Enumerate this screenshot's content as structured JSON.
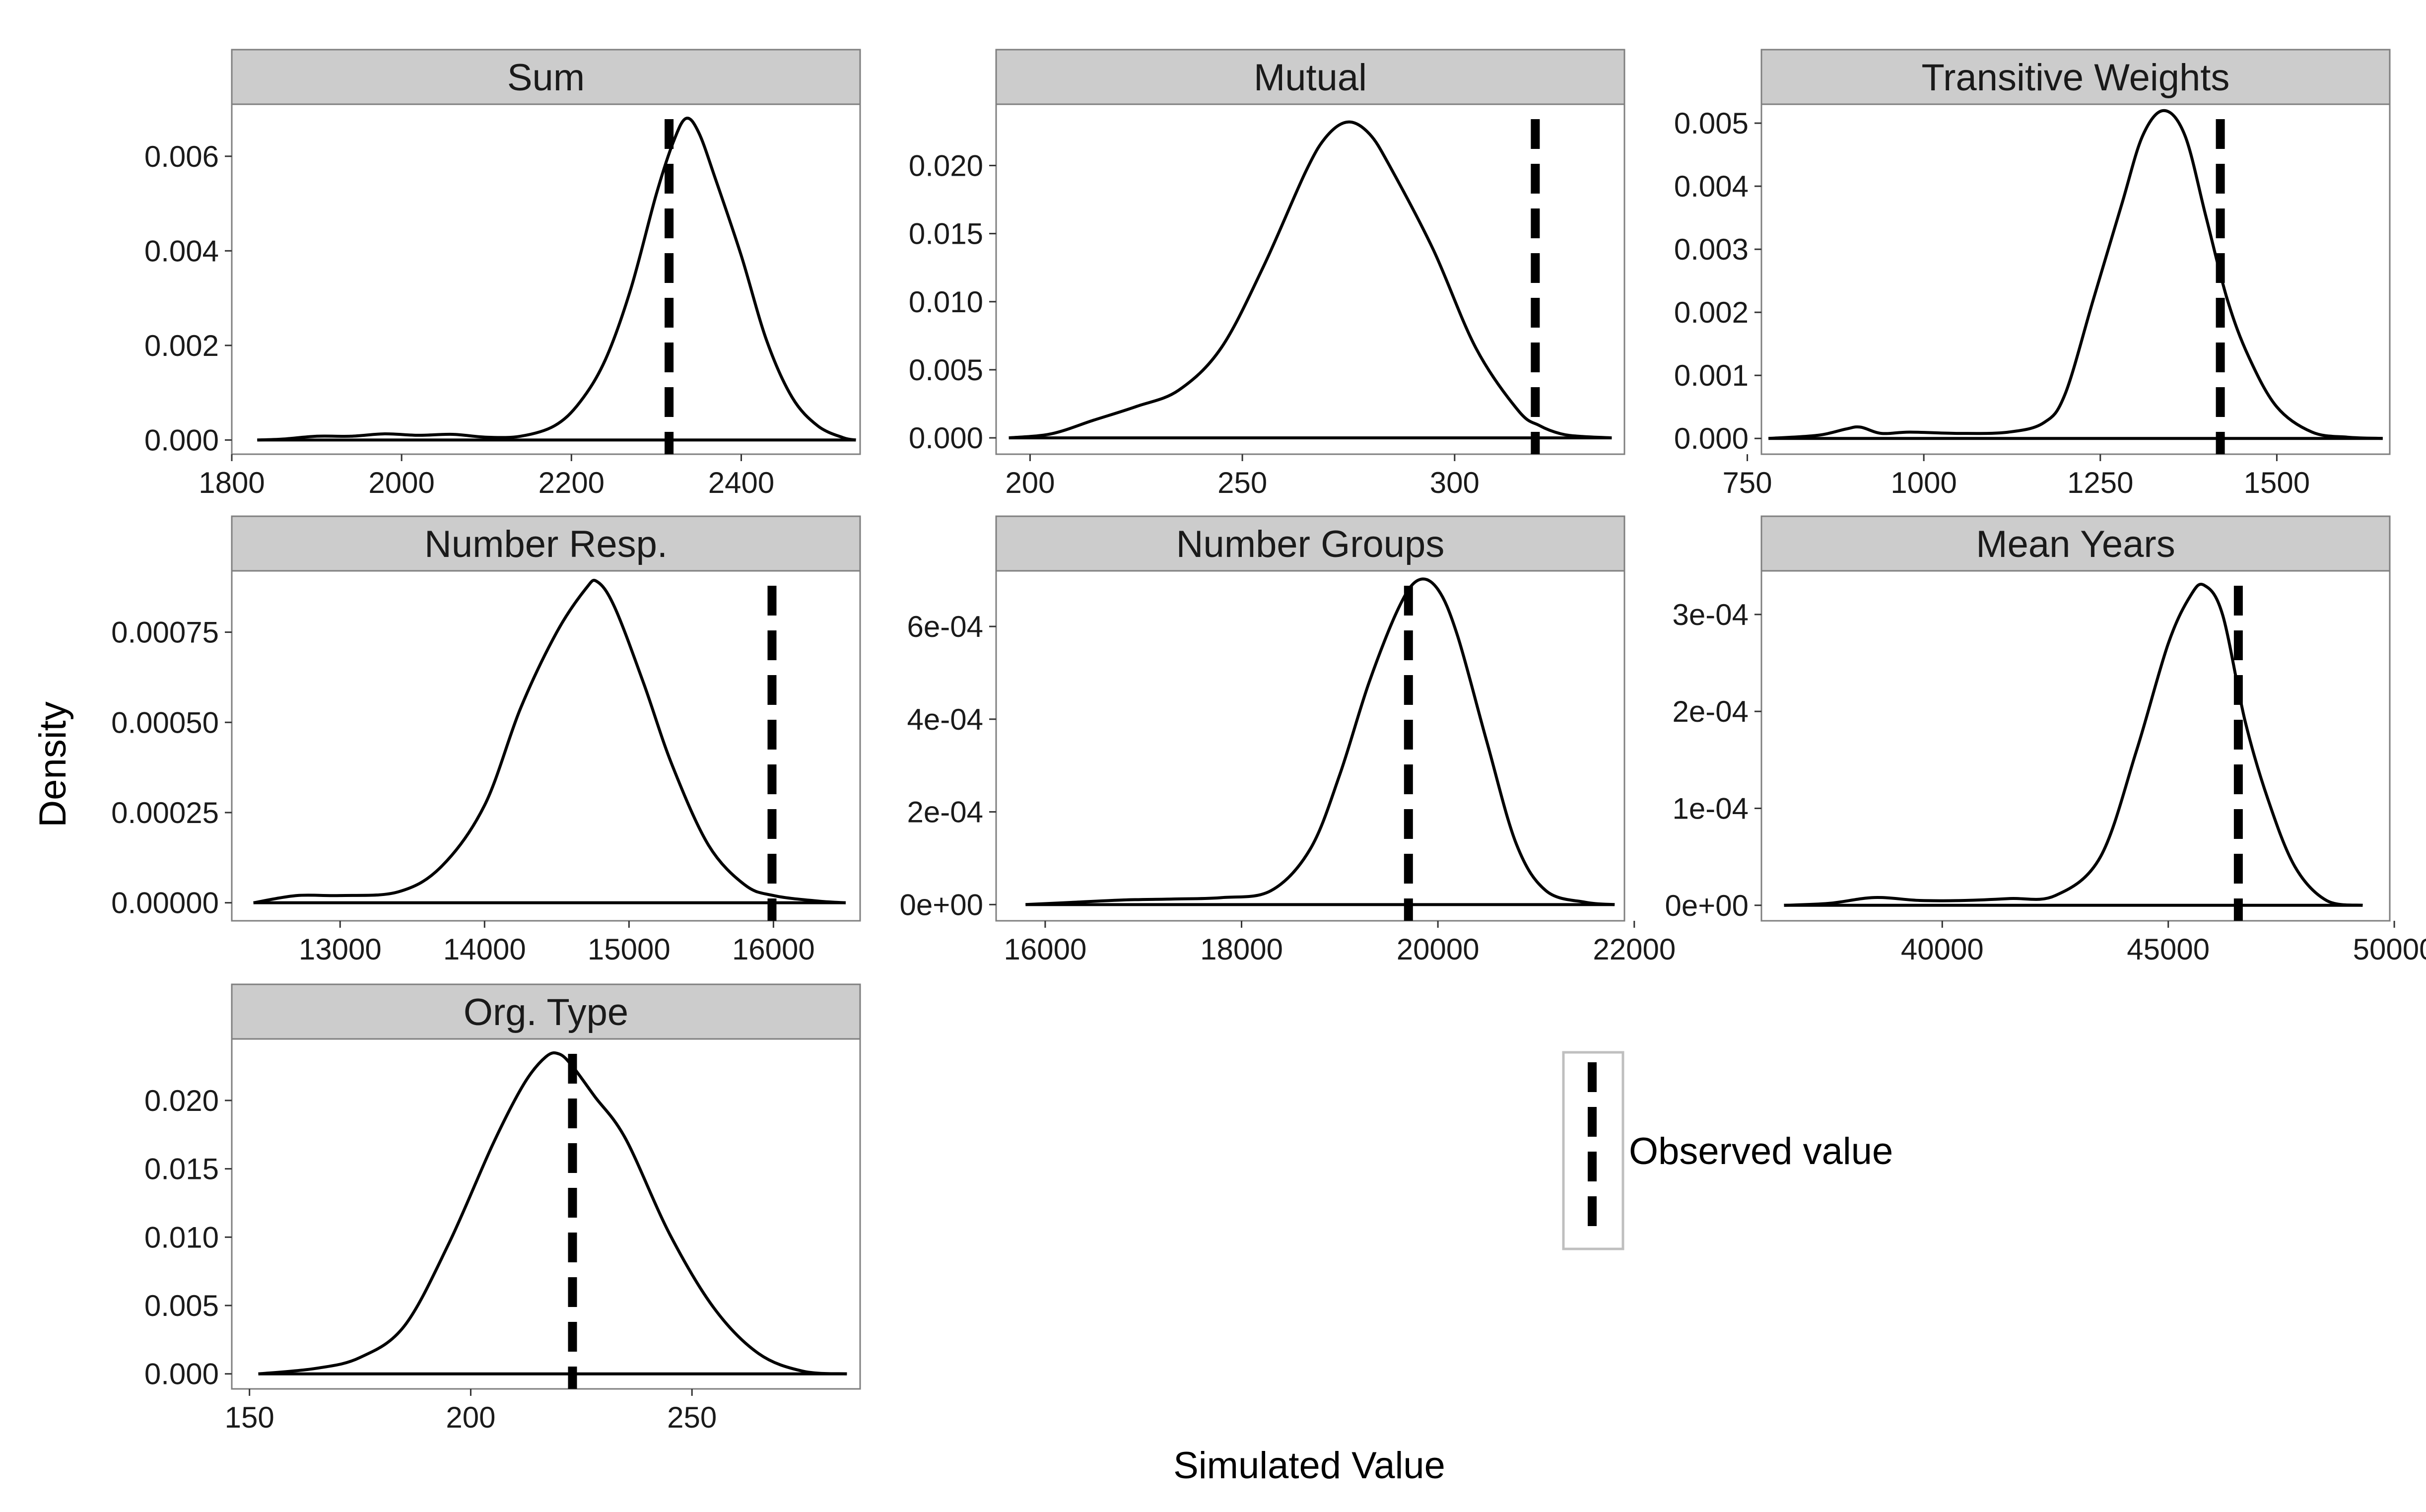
{
  "chart_data": {
    "type": "line",
    "subtype": "faceted density plots with observed-value reference lines",
    "xlabel": "Simulated Value",
    "ylabel": "Density",
    "grid": false,
    "legend": {
      "position": "right",
      "entries": [
        {
          "label": "Observed value",
          "style": "dashed"
        }
      ]
    },
    "facets": [
      {
        "title": "Sum",
        "xlim": [
          1800,
          2540
        ],
        "ylim": [
          -0.0003,
          0.0071
        ],
        "xticks": [
          1800,
          2000,
          2200,
          2400
        ],
        "xtick_labels": [
          "1800",
          "2000",
          "2200",
          "2400"
        ],
        "yticks": [
          0,
          0.002,
          0.004,
          0.006
        ],
        "ytick_labels": [
          "0.000",
          "0.002",
          "0.004",
          "0.006"
        ],
        "observed": 2315,
        "x": [
          1830,
          1860,
          1900,
          1940,
          1980,
          2020,
          2060,
          2100,
          2140,
          2180,
          2210,
          2240,
          2270,
          2300,
          2320,
          2335,
          2350,
          2370,
          2400,
          2430,
          2460,
          2490,
          2520,
          2535
        ],
        "density": [
          0,
          2e-05,
          8e-05,
          8e-05,
          0.00013,
          0.0001,
          0.00012,
          6e-05,
          8e-05,
          0.0003,
          0.0008,
          0.0017,
          0.0032,
          0.0052,
          0.0063,
          0.0068,
          0.0065,
          0.0055,
          0.0039,
          0.0021,
          0.0009,
          0.0003,
          5e-05,
          0
        ]
      },
      {
        "title": "Mutual",
        "xlim": [
          192,
          340
        ],
        "ylim": [
          -0.0012,
          0.0245
        ],
        "xticks": [
          200,
          250,
          300
        ],
        "xtick_labels": [
          "200",
          "250",
          "300"
        ],
        "yticks": [
          0,
          0.005,
          0.01,
          0.015,
          0.02
        ],
        "ytick_labels": [
          "0.000",
          "0.005",
          "0.010",
          "0.015",
          "0.020"
        ],
        "observed": 319,
        "x": [
          195,
          205,
          215,
          225,
          235,
          245,
          255,
          265,
          270,
          275,
          280,
          285,
          295,
          305,
          315,
          320,
          325,
          330,
          337
        ],
        "density": [
          0,
          0.0003,
          0.0013,
          0.0023,
          0.0035,
          0.0066,
          0.0126,
          0.0196,
          0.0222,
          0.0232,
          0.0223,
          0.0198,
          0.0138,
          0.0066,
          0.002,
          0.0009,
          0.0003,
          0.0001,
          0
        ]
      },
      {
        "title": "Transitive Weights",
        "xlim": [
          770,
          1660
        ],
        "ylim": [
          -0.00025,
          0.0053
        ],
        "xticks": [
          750,
          1000,
          1250,
          1500
        ],
        "xtick_labels": [
          "750",
          "1000",
          "1250",
          "1500"
        ],
        "yticks": [
          0,
          0.001,
          0.002,
          0.003,
          0.004,
          0.005
        ],
        "ytick_labels": [
          "0.000",
          "0.001",
          "0.002",
          "0.003",
          "0.004",
          "0.005"
        ],
        "observed": 1420,
        "x": [
          780,
          850,
          890,
          910,
          940,
          980,
          1050,
          1120,
          1170,
          1200,
          1240,
          1280,
          1310,
          1340,
          1370,
          1400,
          1430,
          1460,
          1500,
          1550,
          1600,
          1650
        ],
        "density": [
          0,
          5e-05,
          0.00015,
          0.00018,
          8e-05,
          0.0001,
          8e-05,
          0.0001,
          0.00025,
          0.0007,
          0.0022,
          0.0037,
          0.0048,
          0.0052,
          0.0048,
          0.0035,
          0.0022,
          0.0013,
          0.0005,
          0.0001,
          2e-05,
          0
        ]
      },
      {
        "title": "Number Resp.",
        "xlim": [
          12250,
          16600
        ],
        "ylim": [
          -5e-05,
          0.00092
        ],
        "xticks": [
          13000,
          14000,
          15000,
          16000
        ],
        "xtick_labels": [
          "13000",
          "14000",
          "15000",
          "16000"
        ],
        "yticks": [
          0,
          0.00025,
          0.0005,
          0.00075
        ],
        "ytick_labels": [
          "0.00000",
          "0.00025",
          "0.00050",
          "0.00075"
        ],
        "observed": 15990,
        "x": [
          12400,
          12700,
          13000,
          13400,
          13700,
          14000,
          14250,
          14500,
          14700,
          14780,
          14900,
          15100,
          15300,
          15550,
          15800,
          16000,
          16300,
          16500
        ],
        "density": [
          0,
          2e-05,
          2e-05,
          3e-05,
          0.0001,
          0.00027,
          0.00054,
          0.00075,
          0.00087,
          0.00089,
          0.00082,
          0.00061,
          0.00038,
          0.00016,
          5e-05,
          2e-05,
          5e-06,
          0
        ]
      },
      {
        "title": "Number Groups",
        "xlim": [
          15500,
          21900
        ],
        "ylim": [
          -3.5e-05,
          0.00072
        ],
        "xticks": [
          16000,
          18000,
          20000,
          22000
        ],
        "xtick_labels": [
          "16000",
          "18000",
          "20000",
          "22000"
        ],
        "yticks": [
          0,
          0.0002,
          0.0004,
          0.0006
        ],
        "ytick_labels": [
          "0e+00",
          "2e-04",
          "4e-04",
          "6e-04"
        ],
        "observed": 19700,
        "x": [
          15800,
          16300,
          16800,
          17300,
          17800,
          18300,
          18700,
          19000,
          19300,
          19600,
          19800,
          20000,
          20200,
          20500,
          20800,
          21100,
          21500,
          21800
        ],
        "density": [
          0,
          5e-06,
          1e-05,
          1.2e-05,
          1.5e-05,
          3e-05,
          0.00012,
          0.00028,
          0.00048,
          0.00064,
          0.0007,
          0.00068,
          0.00058,
          0.00035,
          0.00013,
          3e-05,
          5e-06,
          0
        ]
      },
      {
        "title": "Mean Years",
        "xlim": [
          36000,
          49900
        ],
        "ylim": [
          -1.6e-05,
          0.000345
        ],
        "xticks": [
          40000,
          45000,
          50000
        ],
        "xtick_labels": [
          "40000",
          "45000",
          "50000"
        ],
        "yticks": [
          0,
          0.0001,
          0.0002,
          0.0003
        ],
        "ytick_labels": [
          "0e+00",
          "1e-04",
          "2e-04",
          "3e-04"
        ],
        "observed": 46550,
        "x": [
          36500,
          37500,
          38500,
          39500,
          40500,
          41500,
          42500,
          43500,
          44300,
          45000,
          45500,
          45800,
          46200,
          46700,
          47200,
          47800,
          48500,
          49300
        ],
        "density": [
          0,
          2e-06,
          8e-06,
          5e-06,
          5e-06,
          7e-06,
          1e-05,
          5e-05,
          0.00016,
          0.00027,
          0.00032,
          0.00033,
          0.0003,
          0.00019,
          0.00011,
          4e-05,
          5e-06,
          0
        ]
      },
      {
        "title": "Org. Type",
        "xlim": [
          146,
          288
        ],
        "ylim": [
          -0.0011,
          0.0245
        ],
        "xticks": [
          150,
          200,
          250
        ],
        "xtick_labels": [
          "150",
          "200",
          "250"
        ],
        "yticks": [
          0,
          0.005,
          0.01,
          0.015,
          0.02
        ],
        "ytick_labels": [
          "0.000",
          "0.005",
          "0.010",
          "0.015",
          "0.020"
        ],
        "observed": 223,
        "x": [
          152,
          165,
          175,
          185,
          195,
          205,
          212,
          217,
          220,
          223,
          228,
          235,
          245,
          255,
          265,
          275,
          285
        ],
        "density": [
          0,
          0.0004,
          0.0012,
          0.0035,
          0.0095,
          0.0168,
          0.0212,
          0.0232,
          0.0234,
          0.0225,
          0.0203,
          0.0172,
          0.0102,
          0.0048,
          0.0015,
          0.0002,
          0
        ]
      }
    ]
  }
}
